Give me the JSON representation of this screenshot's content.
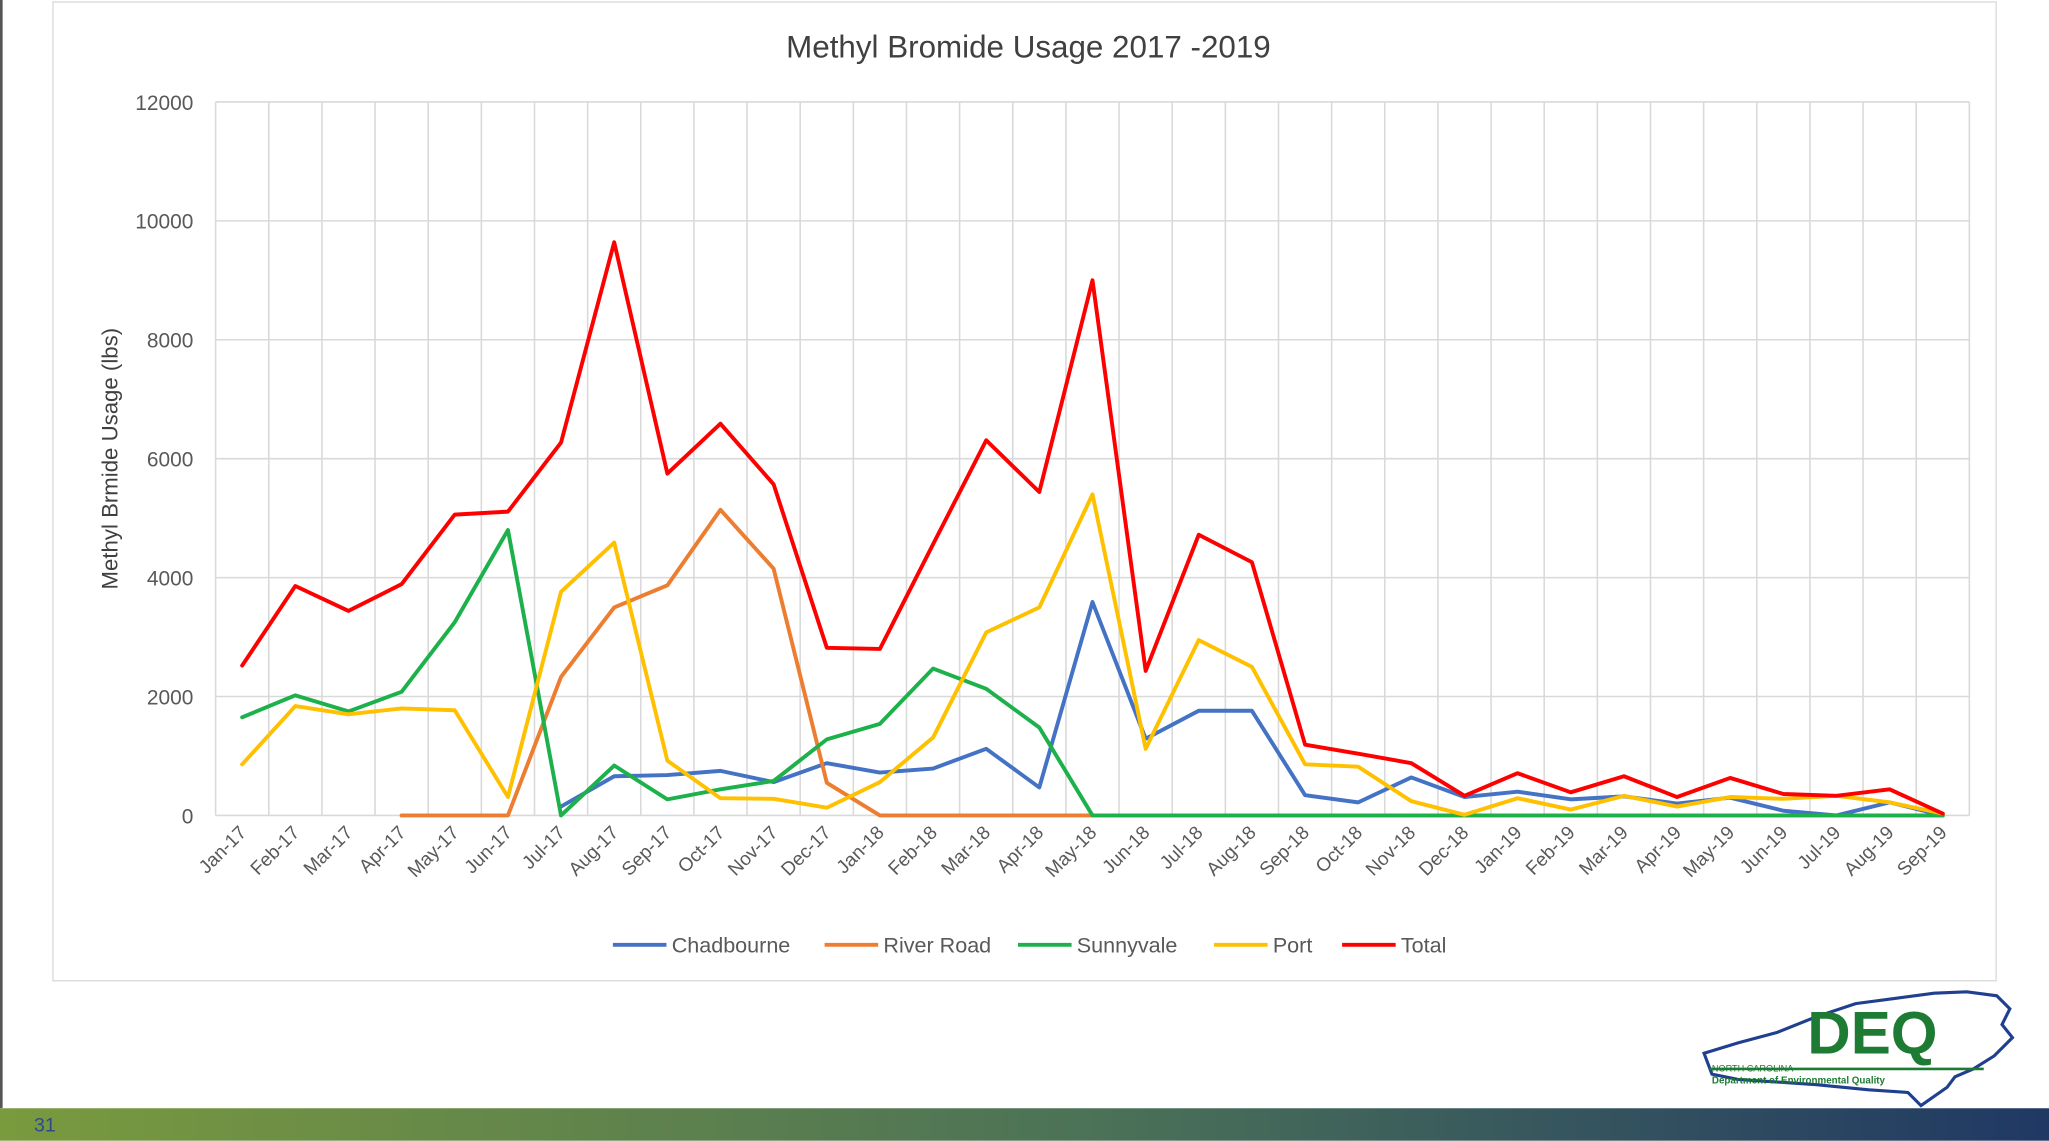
{
  "slide": {
    "page_number": "31"
  },
  "logo": {
    "acronym": "DEQ",
    "line1": "NORTH CAROLINA",
    "line2": "Department of Environmental Quality"
  },
  "colors": {
    "chadbourne": "#4472c4",
    "river_road": "#ed7d31",
    "sunnyvale": "#1db14b",
    "port": "#ffc000",
    "total": "#ff0000",
    "deq_green": "#1e7b34",
    "nc_blue": "#1f3f8f",
    "footer_left": "#7a9a3e",
    "footer_right": "#203864"
  },
  "chart_data": {
    "type": "line",
    "title": "Methyl Bromide Usage 2017 -2019",
    "xlabel": "",
    "ylabel": "Methyl Brmide Usage (lbs)",
    "ylim": [
      0,
      12000
    ],
    "yticks": [
      0,
      2000,
      4000,
      6000,
      8000,
      10000,
      12000
    ],
    "grid": true,
    "legend_position": "bottom",
    "categories": [
      "Jan-17",
      "Feb-17",
      "Mar-17",
      "Apr-17",
      "May-17",
      "Jun-17",
      "Jul-17",
      "Aug-17",
      "Sep-17",
      "Oct-17",
      "Nov-17",
      "Dec-17",
      "Jan-18",
      "Feb-18",
      "Mar-18",
      "Apr-18",
      "May-18",
      "Jun-18",
      "Jul-18",
      "Aug-18",
      "Sep-18",
      "Oct-18",
      "Nov-18",
      "Dec-18",
      "Jan-19",
      "Feb-19",
      "Mar-19",
      "Apr-19",
      "May-19",
      "Jun-19",
      "Jul-19",
      "Aug-19",
      "Sep-19"
    ],
    "series": [
      {
        "name": "Chadbourne",
        "color": "#4472c4",
        "values": [
          null,
          null,
          null,
          null,
          null,
          null,
          150,
          660,
          680,
          750,
          560,
          880,
          720,
          790,
          1120,
          470,
          3590,
          1290,
          1760,
          1760,
          340,
          220,
          640,
          310,
          400,
          270,
          320,
          200,
          300,
          80,
          0,
          220,
          0
        ]
      },
      {
        "name": "River Road",
        "color": "#ed7d31",
        "values": [
          null,
          null,
          null,
          0,
          0,
          0,
          2330,
          3500,
          3870,
          5140,
          4150,
          550,
          0,
          0,
          0,
          0,
          0,
          0,
          0,
          0,
          0,
          0,
          0,
          0,
          0,
          0,
          0,
          0,
          0,
          0,
          0,
          0,
          0
        ]
      },
      {
        "name": "Sunnyvale",
        "color": "#1db14b",
        "values": [
          1650,
          2020,
          1750,
          2080,
          3250,
          4800,
          0,
          840,
          270,
          440,
          580,
          1280,
          1540,
          2470,
          2130,
          1480,
          0,
          0,
          0,
          0,
          0,
          0,
          0,
          0,
          0,
          0,
          0,
          0,
          0,
          0,
          0,
          0,
          0
        ]
      },
      {
        "name": "Port",
        "color": "#ffc000",
        "values": [
          860,
          1840,
          1700,
          1800,
          1770,
          310,
          3760,
          4590,
          920,
          290,
          280,
          130,
          560,
          1310,
          3080,
          3500,
          5400,
          1120,
          2950,
          2500,
          860,
          820,
          240,
          10,
          290,
          100,
          330,
          150,
          310,
          280,
          330,
          220,
          30
        ]
      },
      {
        "name": "Total",
        "color": "#ff0000",
        "values": [
          2520,
          3860,
          3440,
          3890,
          5060,
          5110,
          6270,
          9640,
          5750,
          6590,
          5570,
          2820,
          2800,
          4560,
          6310,
          5440,
          9000,
          2430,
          4720,
          4260,
          1190,
          1040,
          880,
          330,
          710,
          390,
          660,
          310,
          630,
          360,
          330,
          440,
          30
        ]
      }
    ]
  }
}
